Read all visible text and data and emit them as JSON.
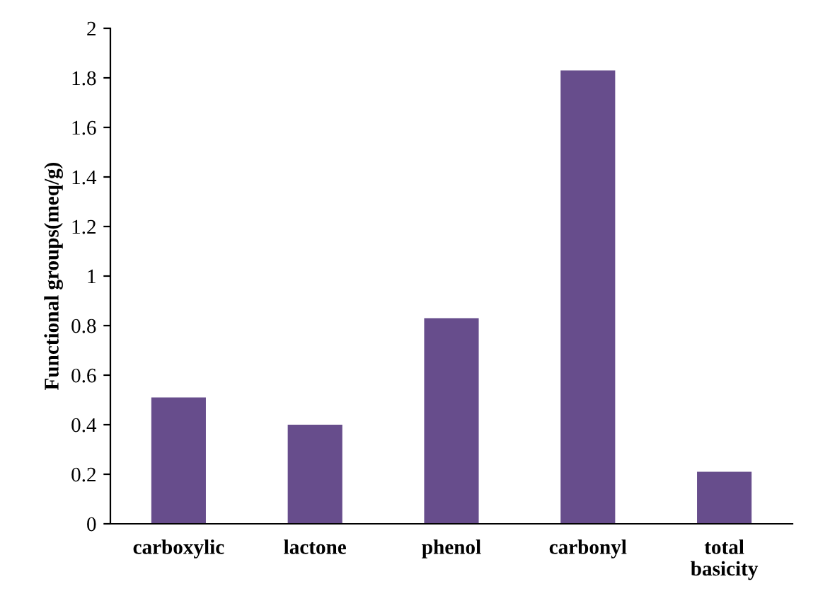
{
  "chart_data": {
    "type": "bar",
    "ylabel": "Functional groups(meq/g)",
    "categories": [
      "carboxylic",
      "lactone",
      "phenol",
      "carbonyl",
      "total\nbasicity"
    ],
    "values": [
      0.51,
      0.4,
      0.83,
      1.83,
      0.21
    ],
    "color": "#674d8c",
    "ylim": [
      0,
      2
    ],
    "yticks": [
      0,
      0.2,
      0.4,
      0.6,
      0.8,
      1,
      1.2,
      1.4,
      1.6,
      1.8,
      2
    ],
    "grid": false,
    "legend": false
  }
}
